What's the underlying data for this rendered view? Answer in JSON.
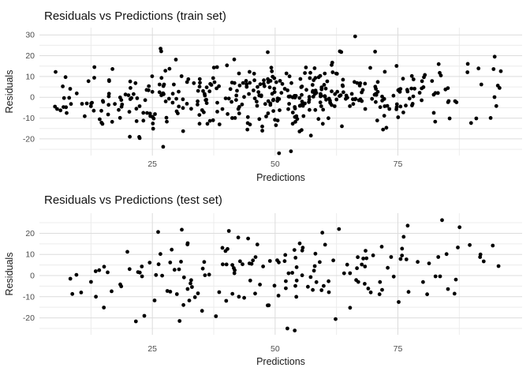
{
  "style": {
    "background": "#ffffff",
    "point_color": "#000000",
    "grid_major_color": "#dcdcdc",
    "grid_minor_color": "#ececec",
    "tick_text_color": "#4d4d4d",
    "title_color": "#121212"
  },
  "chart_data": [
    {
      "type": "scatter",
      "title": "Residuals vs Predictions (train set)",
      "xlabel": "Predictions",
      "ylabel": "Residuals",
      "legend": "none",
      "grid": "major and minor, light gray on white",
      "x_ticks": [
        25,
        50,
        75
      ],
      "y_ticks": [
        30,
        20,
        10,
        0,
        -10,
        -20
      ],
      "x_minor_gridlines": [
        12.5,
        37.5,
        62.5,
        87.5
      ],
      "y_minor_gridlines": [
        25,
        15,
        5,
        -5,
        -15,
        -25
      ],
      "xlim": [
        2,
        100.3
      ],
      "ylim": [
        -28,
        33.5
      ],
      "n_points": 437,
      "point_radius": 2.4,
      "point_color": "#000000",
      "points_model": {
        "comment": "residuals scatter: x ~ mix(uniform,bates2) on [x_min,x_max]; residual ~ Normal(mean_slope*(x-mean_center), sd) bounded below by -x (residual >= -prediction) giving the diagonal lower edge at small predictions",
        "seed": 7,
        "n": 430,
        "x_min": 5,
        "x_max": 96.5,
        "uniform_mix": 0.32,
        "mean_slope": 0.075,
        "mean_center": 45,
        "sd": 8.2,
        "floor_abs": -27,
        "ceil": 23.5
      },
      "feature_points": [
        [
          66.3,
          29.3
        ],
        [
          50.8,
          -26.9
        ],
        [
          27.2,
          -23.8
        ],
        [
          13.2,
          14.5
        ],
        [
          26.8,
          22.1
        ],
        [
          48.5,
          21.7
        ],
        [
          95.7,
          4.5
        ]
      ]
    },
    {
      "type": "scatter",
      "title": "Residuals vs Predictions (test set)",
      "xlabel": "Predictions",
      "ylabel": "Residuals",
      "legend": "none",
      "grid": "major and minor, light gray on white",
      "x_ticks": [
        25,
        50,
        75
      ],
      "y_ticks": [
        20,
        10,
        0,
        -10,
        -20
      ],
      "x_minor_gridlines": [
        12.5,
        37.5,
        62.5,
        87.5
      ],
      "y_minor_gridlines": [
        25,
        15,
        5,
        -5,
        -15,
        -25
      ],
      "xlim": [
        2,
        100.3
      ],
      "ylim": [
        -28,
        29.5
      ],
      "n_points": 178,
      "point_radius": 2.4,
      "point_color": "#000000",
      "points_model": {
        "comment": "sparser test-set residuals, same fan pattern with lower bound residual >= -prediction",
        "seed": 13,
        "n": 165,
        "x_min": 7,
        "x_max": 96,
        "uniform_mix": 0.32,
        "mean_slope": 0.09,
        "mean_center": 45,
        "sd": 9.3,
        "floor_abs": -26.5,
        "ceil": 23
      },
      "feature_points": [
        [
          84,
          26.2
        ],
        [
          77,
          23.6
        ],
        [
          52.5,
          -25
        ],
        [
          54,
          -26
        ],
        [
          95.5,
          4.5
        ],
        [
          63,
          22
        ],
        [
          31,
          21.7
        ],
        [
          42.5,
          18
        ],
        [
          44.5,
          17.5
        ],
        [
          8.3,
          -1.5
        ],
        [
          10.5,
          -8
        ],
        [
          12.5,
          -3
        ],
        [
          13.5,
          -10
        ]
      ]
    }
  ]
}
